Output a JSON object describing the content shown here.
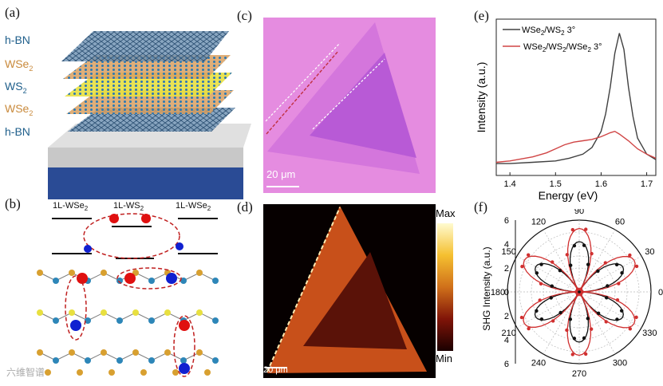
{
  "panels": {
    "a": {
      "label": "(a)",
      "layers": [
        "h-BN",
        "WSe",
        "WS",
        "WSe",
        "h-BN"
      ],
      "subscripts": [
        "",
        "2",
        "2",
        "2",
        ""
      ]
    },
    "b": {
      "label": "(b)",
      "left": "1L-WSe",
      "mid": "1L-WS",
      "right": "1L-WSe",
      "sub": "2"
    },
    "c": {
      "label": "(c)",
      "scale": "20 μm"
    },
    "d": {
      "label": "(d)",
      "scale": "20 μm",
      "max": "Max",
      "min": "Min"
    },
    "e": {
      "label": "(e)"
    },
    "f": {
      "label": "(f)"
    }
  },
  "watermark": "六维智谱",
  "chart_data": [
    {
      "type": "line",
      "panel": "e",
      "xlabel": "Energy (eV)",
      "ylabel": "Intensity (a.u.)",
      "xlim": [
        1.37,
        1.72
      ],
      "xticks": [
        "1.4",
        "1.5",
        "1.6",
        "1.7"
      ],
      "xtick_values": [
        1.4,
        1.5,
        1.6,
        1.7
      ],
      "series": [
        {
          "name": "WSe2/WS2 3°",
          "label_main": "WSe",
          "label_mid": "/WS",
          "label_tail": " 3°",
          "color": "#404040",
          "x": [
            1.37,
            1.4,
            1.45,
            1.5,
            1.53,
            1.56,
            1.58,
            1.6,
            1.61,
            1.62,
            1.63,
            1.64,
            1.65,
            1.66,
            1.67,
            1.68,
            1.7,
            1.72
          ],
          "y": [
            0.03,
            0.03,
            0.04,
            0.05,
            0.07,
            0.1,
            0.15,
            0.27,
            0.4,
            0.6,
            0.85,
            1.0,
            0.88,
            0.6,
            0.38,
            0.22,
            0.1,
            0.06
          ]
        },
        {
          "name": "WSe2/WS2/WSe2 3°",
          "label_main": "WSe",
          "label_mid": "/WS",
          "label_mid2": "/WSe",
          "label_tail": " 3°",
          "color": "#d04545",
          "x": [
            1.37,
            1.4,
            1.45,
            1.48,
            1.5,
            1.52,
            1.54,
            1.56,
            1.58,
            1.6,
            1.62,
            1.63,
            1.64,
            1.66,
            1.68,
            1.7,
            1.72
          ],
          "y": [
            0.04,
            0.05,
            0.08,
            0.11,
            0.14,
            0.17,
            0.19,
            0.2,
            0.21,
            0.23,
            0.26,
            0.27,
            0.25,
            0.2,
            0.14,
            0.1,
            0.07
          ]
        }
      ]
    },
    {
      "type": "scatter",
      "panel": "f",
      "subtype": "polar",
      "ylabel": "SHG Intensity (a.u.)",
      "radial_ticks": [
        "6",
        "4",
        "2",
        "0",
        "2",
        "4",
        "6"
      ],
      "angle_ticks": [
        "0",
        "30",
        "60",
        "90",
        "120",
        "150",
        "180",
        "210",
        "240",
        "270",
        "300",
        "330"
      ],
      "series": [
        {
          "name": "black",
          "color": "#111111",
          "amplitude": 4.2
        },
        {
          "name": "red",
          "color": "#d03030",
          "amplitude": 5.3
        }
      ]
    }
  ],
  "colors": {
    "pink": "#e58ce0",
    "purple": "#b85ad6",
    "substrate_blue": "#2a4b95",
    "substrate_grey": "#bfbfbf"
  }
}
